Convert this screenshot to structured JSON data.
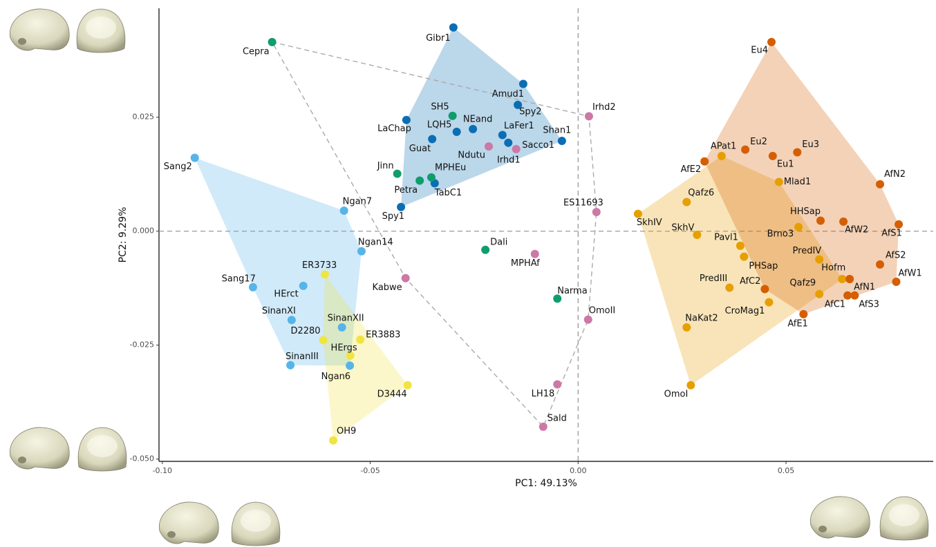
{
  "chart_data": {
    "type": "scatter",
    "x_label": "PC1: 49.13%",
    "y_label": "PC2: 9.29%",
    "xlim": [
      -0.1008,
      0.0854
    ],
    "ylim": [
      -0.0505,
      0.0489
    ],
    "xticks": [
      {
        "value": -0.1,
        "label": "-0.10"
      },
      {
        "value": -0.05,
        "label": "-0.05"
      },
      {
        "value": 0,
        "label": "0.00"
      },
      {
        "value": 0.05,
        "label": "0.05"
      }
    ],
    "yticks": [
      {
        "value": 0.025,
        "label": "0.025"
      },
      {
        "value": 0,
        "label": "0.000"
      },
      {
        "value": -0.025,
        "label": "-0.025"
      },
      {
        "value": -0.05,
        "label": "-0.050"
      }
    ],
    "zero_lines": true,
    "series": [
      {
        "color": "#0b6eb5",
        "hull": "filled",
        "labels": [
          "Gibr1",
          "Amud1",
          "Spy2",
          "Shan1",
          "LaFer1",
          "Sacco1",
          "NEand",
          "LQH5",
          "Guat",
          "LaChap",
          "TabC1",
          "Spy1"
        ],
        "x": [
          -0.03,
          -0.0132,
          -0.0145,
          -0.0039,
          -0.0182,
          -0.0168,
          -0.0253,
          -0.0292,
          -0.0351,
          -0.0413,
          -0.0345,
          -0.0426
        ],
        "values": [
          0.0447,
          0.0323,
          0.0277,
          0.0198,
          0.0211,
          0.0194,
          0.0224,
          0.0218,
          0.0202,
          0.0244,
          0.0105,
          0.0053
        ]
      },
      {
        "color": "#0f9d6e",
        "hull": "dashed",
        "labels": [
          "Cepra",
          "SH5",
          "Jinn",
          "Petra",
          "MPHEu",
          "Dali",
          "Narma"
        ],
        "x": [
          -0.0736,
          -0.0302,
          -0.0435,
          -0.0381,
          -0.0353,
          -0.0223,
          -0.005
        ],
        "values": [
          0.0415,
          0.0253,
          0.0126,
          0.0111,
          0.0118,
          -0.0041,
          -0.0148
        ]
      },
      {
        "color": "#cc79a7",
        "hull": "dashed",
        "labels": [
          "Irhd2",
          "Ndutu",
          "Irhd1",
          "ES11693",
          "MPHAf",
          "Kabwe",
          "OmoII",
          "LH18",
          "Sald"
        ],
        "x": [
          0.0026,
          -0.0215,
          -0.0149,
          0.0044,
          -0.0104,
          -0.0415,
          0.0024,
          -0.005,
          -0.0084
        ],
        "values": [
          0.0252,
          0.0186,
          0.018,
          0.0042,
          -0.005,
          -0.0103,
          -0.0194,
          -0.0336,
          -0.0429
        ]
      },
      {
        "color": "#56b4e9",
        "hull": "filled",
        "labels": [
          "Sang2",
          "Ngan7",
          "Ngan14",
          "Sang17",
          "HErct",
          "SinanXI",
          "SinanXII",
          "SinanIII",
          "Ngan6"
        ],
        "x": [
          -0.0922,
          -0.0563,
          -0.0521,
          -0.0782,
          -0.0661,
          -0.0689,
          -0.0568,
          -0.0692,
          -0.0549
        ],
        "values": [
          0.0161,
          0.0045,
          -0.0044,
          -0.0123,
          -0.012,
          -0.0195,
          -0.0211,
          -0.0294,
          -0.0295
        ]
      },
      {
        "color": "#f0e442",
        "hull": "filled",
        "labels": [
          "ER3733",
          "ER3883",
          "D2280",
          "HErgs",
          "D3444",
          "OH9"
        ],
        "x": [
          -0.0609,
          -0.0524,
          -0.0613,
          -0.0548,
          -0.041,
          -0.0589
        ],
        "values": [
          -0.0095,
          -0.0238,
          -0.0239,
          -0.0273,
          -0.0338,
          -0.0459
        ]
      },
      {
        "color": "#e69f00",
        "hull": "filled",
        "labels": [
          "APat1",
          "Mlad1",
          "Qafz6",
          "SkhIV",
          "SkhV",
          "Brno3",
          "Pavl1",
          "PHSap",
          "PredIV",
          "Hofm",
          "PredIII",
          "Qafz9",
          "CroMag1",
          "NaKat2",
          "OmoI"
        ],
        "x": [
          0.0345,
          0.0483,
          0.0261,
          0.0144,
          0.0286,
          0.053,
          0.039,
          0.0399,
          0.058,
          0.0635,
          0.0364,
          0.058,
          0.0459,
          0.0261,
          0.0271
        ],
        "values": [
          0.0165,
          0.0108,
          0.0064,
          0.0038,
          -0.0008,
          0.0009,
          -0.0032,
          -0.0056,
          -0.0062,
          -0.0105,
          -0.0124,
          -0.0138,
          -0.0156,
          -0.0211,
          -0.0338
        ]
      },
      {
        "color": "#d55e00",
        "hull": "filled",
        "labels": [
          "Eu4",
          "AfE2",
          "Eu2",
          "Eu3",
          "Eu1",
          "AfN2",
          "HHSap",
          "AfW2",
          "AfS1",
          "AfS2",
          "AfW1",
          "AfN1",
          "AfC2",
          "AfS3",
          "AfC1",
          "AfE1"
        ],
        "x": [
          0.0465,
          0.0304,
          0.0402,
          0.0527,
          0.0468,
          0.0726,
          0.0583,
          0.0638,
          0.0771,
          0.0726,
          0.0765,
          0.0653,
          0.0449,
          0.0665,
          0.0648,
          0.0542
        ],
        "values": [
          0.0415,
          0.0153,
          0.0179,
          0.0173,
          0.0165,
          0.0103,
          0.0023,
          0.0021,
          0.0015,
          -0.0073,
          -0.0111,
          -0.0105,
          -0.0127,
          -0.0141,
          -0.0141,
          -0.0182
        ]
      }
    ]
  }
}
